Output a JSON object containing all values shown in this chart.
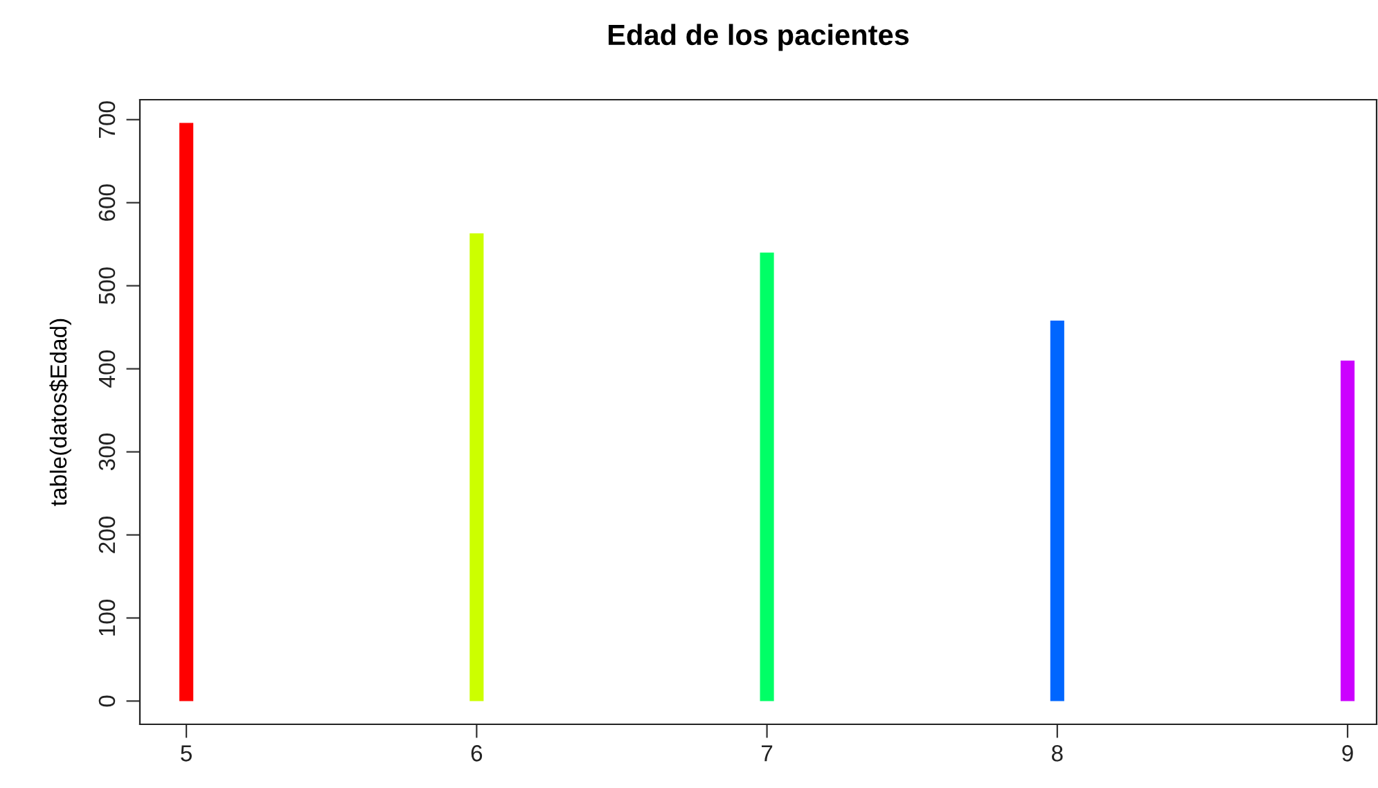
{
  "chart_data": {
    "type": "bar",
    "title": "Edad de los pacientes",
    "ylabel": "table(datos$Edad)",
    "x": [
      5,
      6,
      7,
      8,
      9
    ],
    "values": [
      696,
      563,
      540,
      458,
      410
    ],
    "colors": [
      "#ff0000",
      "#ccff00",
      "#00ff66",
      "#0066ff",
      "#cc00ff"
    ],
    "xlim": [
      4.84,
      9.1
    ],
    "xticks": [
      5,
      6,
      7,
      8,
      9
    ],
    "ylim": [
      -28,
      724
    ],
    "yticks": [
      0,
      100,
      200,
      300,
      400,
      500,
      600,
      700
    ],
    "grid": false
  }
}
